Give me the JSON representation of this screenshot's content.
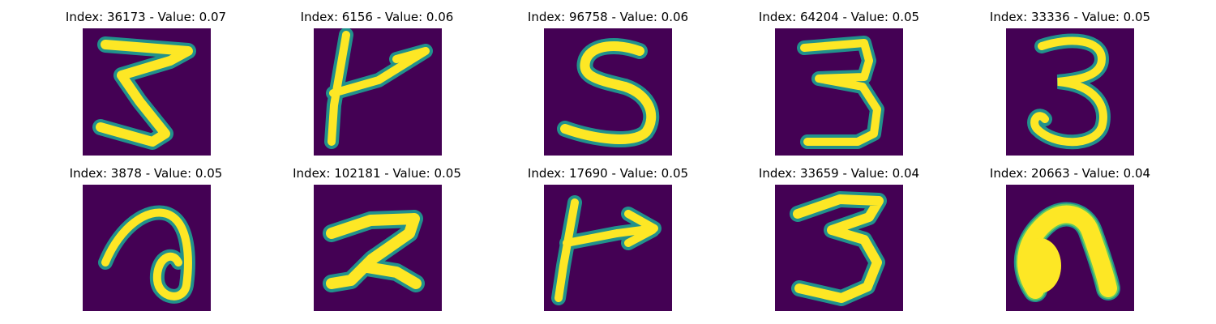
{
  "colors": {
    "background": "#440154",
    "stroke_outer": "#21918c",
    "stroke_mid": "#5ec962",
    "stroke_core": "#fde725"
  },
  "panels": [
    {
      "title": "Index: 36173 - Value: 0.07",
      "digit": "3",
      "index": 36173,
      "value": 0.07
    },
    {
      "title": "Index: 6156 - Value: 0.06",
      "digit": "7-like stroke",
      "index": 6156,
      "value": 0.06
    },
    {
      "title": "Index: 96758 - Value: 0.06",
      "digit": "5",
      "index": 96758,
      "value": 0.06
    },
    {
      "title": "Index: 64204 - Value: 0.05",
      "digit": "3",
      "index": 64204,
      "value": 0.05
    },
    {
      "title": "Index: 33336 - Value: 0.05",
      "digit": "3",
      "index": 33336,
      "value": 0.05
    },
    {
      "title": "Index: 3878 - Value: 0.05",
      "digit": "a-like loop",
      "index": 3878,
      "value": 0.05
    },
    {
      "title": "Index: 102181 - Value: 0.05",
      "digit": "2",
      "index": 102181,
      "value": 0.05
    },
    {
      "title": "Index: 17690 - Value: 0.05",
      "digit": "7-like stroke",
      "index": 17690,
      "value": 0.05
    },
    {
      "title": "Index: 33659 - Value: 0.04",
      "digit": "3",
      "index": 33659,
      "value": 0.04
    },
    {
      "title": "Index: 20663 - Value: 0.04",
      "digit": "n-like blob",
      "index": 20663,
      "value": 0.04
    }
  ]
}
